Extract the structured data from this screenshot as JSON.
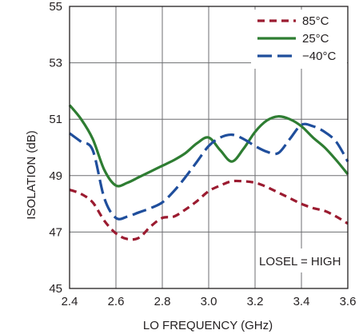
{
  "chart_data": {
    "type": "line",
    "title": "",
    "xlabel": "LO FREQUENCY (GHz)",
    "ylabel": "ISOLATION (dB)",
    "xlim": [
      2.4,
      3.6
    ],
    "ylim": [
      45,
      55
    ],
    "x_ticks": [
      "2.4",
      "2.6",
      "2.8",
      "3.0",
      "3.2",
      "3.4",
      "3.6"
    ],
    "y_ticks": [
      "45",
      "47",
      "49",
      "51",
      "53",
      "55"
    ],
    "x_tick_values": [
      2.4,
      2.6,
      2.8,
      3.0,
      3.2,
      3.4,
      3.6
    ],
    "y_tick_values": [
      45,
      47,
      49,
      51,
      53,
      55
    ],
    "grid": true,
    "legend_position": "top-right",
    "annotation": "LOSEL = HIGH",
    "series": [
      {
        "name": "85°C",
        "color": "#9b1b30",
        "dash": "dashed",
        "x": [
          2.4,
          2.45,
          2.5,
          2.55,
          2.6,
          2.65,
          2.7,
          2.75,
          2.8,
          2.85,
          2.9,
          2.95,
          3.0,
          3.05,
          3.1,
          3.15,
          3.2,
          3.25,
          3.3,
          3.35,
          3.4,
          3.45,
          3.5,
          3.55,
          3.6
        ],
        "y": [
          48.5,
          48.35,
          48.05,
          47.4,
          46.95,
          46.75,
          46.8,
          47.2,
          47.5,
          47.55,
          47.8,
          48.1,
          48.45,
          48.65,
          48.8,
          48.8,
          48.75,
          48.6,
          48.4,
          48.2,
          48.0,
          47.85,
          47.75,
          47.55,
          47.3
        ]
      },
      {
        "name": "25°C",
        "color": "#2e7d32",
        "dash": "solid",
        "x": [
          2.4,
          2.45,
          2.5,
          2.55,
          2.6,
          2.65,
          2.7,
          2.75,
          2.8,
          2.85,
          2.9,
          2.95,
          3.0,
          3.05,
          3.1,
          3.15,
          3.2,
          3.25,
          3.3,
          3.35,
          3.4,
          3.45,
          3.5,
          3.55,
          3.6
        ],
        "y": [
          51.5,
          51.0,
          50.3,
          49.2,
          48.65,
          48.75,
          48.95,
          49.15,
          49.35,
          49.55,
          49.8,
          50.15,
          50.35,
          49.9,
          49.5,
          49.95,
          50.55,
          50.95,
          51.1,
          51.0,
          50.75,
          50.35,
          50.0,
          49.55,
          49.05
        ]
      },
      {
        "name": "−40°C",
        "color": "#1f4e9c",
        "dash": "longdash",
        "x": [
          2.4,
          2.45,
          2.5,
          2.55,
          2.6,
          2.65,
          2.7,
          2.75,
          2.8,
          2.85,
          2.9,
          2.95,
          3.0,
          3.05,
          3.1,
          3.15,
          3.2,
          3.25,
          3.3,
          3.35,
          3.4,
          3.45,
          3.5,
          3.55,
          3.6
        ],
        "y": [
          50.5,
          50.2,
          49.9,
          48.2,
          47.5,
          47.55,
          47.7,
          47.85,
          48.05,
          48.45,
          48.95,
          49.5,
          50.05,
          50.35,
          50.45,
          50.3,
          50.05,
          49.85,
          49.8,
          50.3,
          50.8,
          50.75,
          50.55,
          50.2,
          49.5
        ]
      }
    ]
  }
}
